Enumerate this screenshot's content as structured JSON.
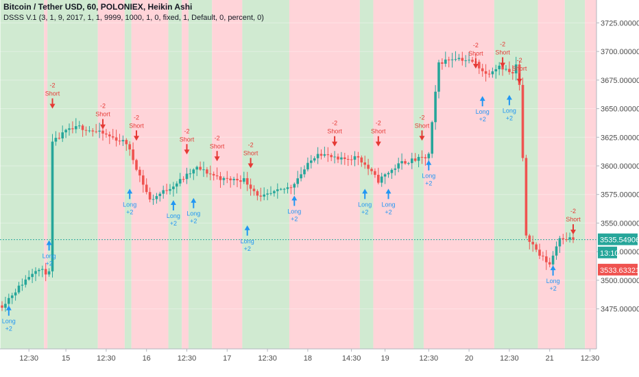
{
  "header": {
    "title": "Bitcoin / Tether USD, 60, POLONIEX, Heikin Ashi",
    "indicator": "DSSS V.1 (3, 1, 9, 2017, 1, 1, 9999, 1000, 1, 0, fixed, 1, Default, 0, percent, 0)"
  },
  "colors": {
    "bull": "#26a69a",
    "bear": "#ef5350",
    "bg_green": "#c8e6c9",
    "bg_red": "#ffcdd2",
    "long": "#2196f3",
    "short": "#e53935",
    "price_line": "#26a69a"
  },
  "chart_data": {
    "type": "candlestick",
    "y_axis": {
      "range": [
        3440,
        3745
      ],
      "ticks": [
        {
          "value": 3475,
          "label": "3475.00000000"
        },
        {
          "value": 3500,
          "label": "3500.00000000"
        },
        {
          "value": 3525,
          "label": "3525.00000000"
        },
        {
          "value": 3550,
          "label": "3550.00000000"
        },
        {
          "value": 3575,
          "label": "3575.00000000"
        },
        {
          "value": 3600,
          "label": "3600.00000000"
        },
        {
          "value": 3625,
          "label": "3625.00000000"
        },
        {
          "value": 3650,
          "label": "3650.00000000"
        },
        {
          "value": 3675,
          "label": "3675.00000000"
        },
        {
          "value": 3700,
          "label": "3700.00000000"
        },
        {
          "value": 3725,
          "label": "3725.00000000"
        }
      ],
      "price_badges": [
        {
          "value": 3535.5,
          "label": "3535.54906308",
          "color": "#26a69a"
        },
        {
          "value": 3524.0,
          "label": "13:10",
          "color": "#26a69a"
        },
        {
          "value": 3509.0,
          "label": "3533.63321488",
          "color": "#ef5350"
        }
      ],
      "last_price": 3535.5
    },
    "x_axis": {
      "bar_count": 170,
      "ticks": [
        {
          "bar": 8,
          "label": "12:30"
        },
        {
          "bar": 19,
          "label": "15"
        },
        {
          "bar": 31,
          "label": "12:30"
        },
        {
          "bar": 43,
          "label": "16"
        },
        {
          "bar": 55,
          "label": "12:30"
        },
        {
          "bar": 67,
          "label": "17"
        },
        {
          "bar": 79,
          "label": "12:30"
        },
        {
          "bar": 91,
          "label": "18"
        },
        {
          "bar": 104,
          "label": "14:30"
        },
        {
          "bar": 114,
          "label": "19"
        },
        {
          "bar": 127,
          "label": "12:30"
        },
        {
          "bar": 139,
          "label": "20"
        },
        {
          "bar": 151,
          "label": "12:30"
        },
        {
          "bar": 163,
          "label": "21"
        },
        {
          "bar": 175,
          "label": "12:30"
        }
      ]
    },
    "regimes": [
      {
        "start": 0,
        "end": 13,
        "trend": "green"
      },
      {
        "start": 13,
        "end": 14,
        "trend": "red"
      },
      {
        "start": 14,
        "end": 29,
        "trend": "green"
      },
      {
        "start": 29,
        "end": 37,
        "trend": "red"
      },
      {
        "start": 37,
        "end": 39,
        "trend": "green"
      },
      {
        "start": 39,
        "end": 50,
        "trend": "red"
      },
      {
        "start": 50,
        "end": 54,
        "trend": "green"
      },
      {
        "start": 54,
        "end": 56,
        "trend": "red"
      },
      {
        "start": 56,
        "end": 63,
        "trend": "green"
      },
      {
        "start": 63,
        "end": 72,
        "trend": "red"
      },
      {
        "start": 72,
        "end": 86,
        "trend": "green"
      },
      {
        "start": 86,
        "end": 107,
        "trend": "red"
      },
      {
        "start": 107,
        "end": 111,
        "trend": "green"
      },
      {
        "start": 111,
        "end": 123,
        "trend": "red"
      },
      {
        "start": 123,
        "end": 126,
        "trend": "green"
      },
      {
        "start": 126,
        "end": 147,
        "trend": "red"
      },
      {
        "start": 147,
        "end": 160,
        "trend": "green"
      },
      {
        "start": 160,
        "end": 168,
        "trend": "red"
      },
      {
        "start": 168,
        "end": 174,
        "trend": "green"
      },
      {
        "start": 174,
        "end": 181,
        "trend": "red"
      }
    ],
    "signals": [
      {
        "bar": 2,
        "type": "long",
        "price": 3478,
        "label": "Long",
        "amount": "+2"
      },
      {
        "bar": 14,
        "type": "long",
        "price": 3535,
        "label": "Long",
        "amount": "+2"
      },
      {
        "bar": 15,
        "type": "short",
        "price": 3650,
        "label": "Short",
        "amount": "-2"
      },
      {
        "bar": 30,
        "type": "short",
        "price": 3632,
        "label": "Short",
        "amount": "-2"
      },
      {
        "bar": 38,
        "type": "long",
        "price": 3580,
        "label": "Long",
        "amount": "+2"
      },
      {
        "bar": 40,
        "type": "short",
        "price": 3622,
        "label": "Short",
        "amount": "-2"
      },
      {
        "bar": 51,
        "type": "long",
        "price": 3570,
        "label": "Long",
        "amount": "+2"
      },
      {
        "bar": 55,
        "type": "short",
        "price": 3610,
        "label": "Short",
        "amount": "-2"
      },
      {
        "bar": 57,
        "type": "long",
        "price": 3572,
        "label": "Long",
        "amount": "+2"
      },
      {
        "bar": 64,
        "type": "short",
        "price": 3604,
        "label": "Short",
        "amount": "-2"
      },
      {
        "bar": 73,
        "type": "long",
        "price": 3548,
        "label": "Long",
        "amount": "+2"
      },
      {
        "bar": 74,
        "type": "short",
        "price": 3598,
        "label": "Short",
        "amount": "-2"
      },
      {
        "bar": 87,
        "type": "long",
        "price": 3574,
        "label": "Long",
        "amount": "+2"
      },
      {
        "bar": 99,
        "type": "short",
        "price": 3617,
        "label": "Short",
        "amount": "-2"
      },
      {
        "bar": 108,
        "type": "long",
        "price": 3580,
        "label": "Long",
        "amount": "+2"
      },
      {
        "bar": 112,
        "type": "short",
        "price": 3617,
        "label": "Short",
        "amount": "-2"
      },
      {
        "bar": 115,
        "type": "long",
        "price": 3580,
        "label": "Long",
        "amount": "+2"
      },
      {
        "bar": 125,
        "type": "short",
        "price": 3622,
        "label": "Short",
        "amount": "-2"
      },
      {
        "bar": 127,
        "type": "long",
        "price": 3605,
        "label": "Long",
        "amount": "+2"
      },
      {
        "bar": 141,
        "type": "short",
        "price": 3685,
        "label": "Short",
        "amount": "-2"
      },
      {
        "bar": 143,
        "type": "long",
        "price": 3661,
        "label": "Long",
        "amount": "+2"
      },
      {
        "bar": 149,
        "type": "short",
        "price": 3686,
        "label": "Short",
        "amount": "-2"
      },
      {
        "bar": 151,
        "type": "long",
        "price": 3662,
        "label": "Long",
        "amount": "+2"
      },
      {
        "bar": 154,
        "type": "short",
        "price": 3672,
        "label": "Short",
        "amount": "-2"
      },
      {
        "bar": 164,
        "type": "long",
        "price": 3513,
        "label": "Long",
        "amount": "+2"
      },
      {
        "bar": 170,
        "type": "short",
        "price": 3540,
        "label": "Short",
        "amount": "-2"
      }
    ],
    "price_path": [
      {
        "bar": 0,
        "price": 3478
      },
      {
        "bar": 10,
        "price": 3510
      },
      {
        "bar": 14,
        "price": 3506
      },
      {
        "bar": 15,
        "price": 3620
      },
      {
        "bar": 19,
        "price": 3630
      },
      {
        "bar": 23,
        "price": 3634
      },
      {
        "bar": 30,
        "price": 3628
      },
      {
        "bar": 37,
        "price": 3620
      },
      {
        "bar": 44,
        "price": 3570
      },
      {
        "bar": 52,
        "price": 3585
      },
      {
        "bar": 58,
        "price": 3598
      },
      {
        "bar": 66,
        "price": 3588
      },
      {
        "bar": 72,
        "price": 3588
      },
      {
        "bar": 77,
        "price": 3572
      },
      {
        "bar": 86,
        "price": 3582
      },
      {
        "bar": 94,
        "price": 3612
      },
      {
        "bar": 100,
        "price": 3605
      },
      {
        "bar": 106,
        "price": 3608
      },
      {
        "bar": 112,
        "price": 3587
      },
      {
        "bar": 114,
        "price": 3592
      },
      {
        "bar": 119,
        "price": 3603
      },
      {
        "bar": 126,
        "price": 3607
      },
      {
        "bar": 127,
        "price": 3610
      },
      {
        "bar": 130,
        "price": 3690
      },
      {
        "bar": 135,
        "price": 3695
      },
      {
        "bar": 141,
        "price": 3690
      },
      {
        "bar": 144,
        "price": 3680
      },
      {
        "bar": 148,
        "price": 3688
      },
      {
        "bar": 152,
        "price": 3680
      },
      {
        "bar": 153,
        "price": 3688
      },
      {
        "bar": 154,
        "price": 3670
      },
      {
        "bar": 156,
        "price": 3540
      },
      {
        "bar": 160,
        "price": 3522
      },
      {
        "bar": 163,
        "price": 3514
      },
      {
        "bar": 166,
        "price": 3538
      },
      {
        "bar": 170,
        "price": 3536
      },
      {
        "bar": 173,
        "price": 3525
      },
      {
        "bar": 178,
        "price": 3535
      }
    ]
  }
}
